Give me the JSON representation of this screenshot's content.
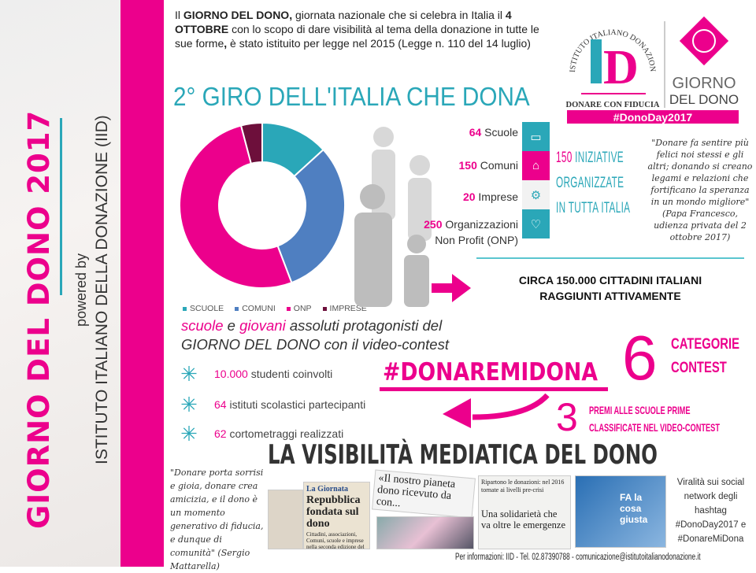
{
  "side": {
    "title": "GIORNO DEL DONO 2017",
    "powered": "powered by",
    "institute": "ISTITUTO ITALIANO DELLA DONAZIONE (IID)"
  },
  "intro": {
    "p1": "Il ",
    "b1": "GIORNO DEL DONO,",
    "p2": " giornata nazionale che si celebra in Italia il ",
    "b2": "4 OTTOBRE",
    "p3": " con lo scopo di dare visibilità al tema della donazione in tutte le sue forme",
    "b3": ",",
    "p4": " è stato istituito per legge nel 2015 (Legge n. 110 del 14 luglio)"
  },
  "giro_title": "2° GIRO DELL'ITALIA CHE DONA",
  "logo": {
    "arc": "ISTITUTO ITALIANO DONAZIONE",
    "mono": "ID",
    "tagline": "DONARE CON FIDUCIA",
    "giorno": "GIORNO",
    "deldono": "DEL DONO",
    "hashtag": "#DonoDay2017"
  },
  "chart_data": {
    "type": "pie",
    "donut": true,
    "categories": [
      "SCUOLE",
      "COMUNI",
      "ONP",
      "IMPRESE"
    ],
    "values": [
      64,
      150,
      250,
      20
    ],
    "colors": [
      "#2aa7b8",
      "#4f7fc1",
      "#ec008c",
      "#6d0f3b"
    ],
    "legend": "bottom"
  },
  "categories": [
    {
      "num": "64",
      "label": " Scuole",
      "icon": "book-icon",
      "color": "#2aa7b8"
    },
    {
      "num": "150",
      "label": " Comuni",
      "icon": "building-icon",
      "color": "#ec008c"
    },
    {
      "num": "20",
      "label": " Imprese",
      "icon": "gears-icon",
      "color": "#f2f2f2"
    },
    {
      "num": "250",
      "label": " Organizzazioni",
      "label2": "Non Profit (ONP)",
      "icon": "heart-icon",
      "color": "#2aa7b8"
    }
  ],
  "iniziative": {
    "num": "150",
    "l1": " INIZIATIVE",
    "l2": "ORGANIZZATE",
    "l3": "IN TUTTA ITALIA"
  },
  "quote1": "\"Donare fa sentire più felici noi stessi e gli altri; donando si creano legami e relazioni che fortificano la speranza in un mondo migliore\" (Papa Francesco, udienza privata del 2 ottobre 2017)",
  "circa": {
    "l1": "CIRCA 150.000 CITTADINI ITALIANI",
    "l2": "RAGGIUNTI ATTIVAMENTE"
  },
  "scuole_text": {
    "w1": "scuole",
    "w2": " e ",
    "w3": "giovani",
    "w4": " assoluti protagonisti del",
    "l2a": "GIORNO DEL DONO",
    "l2b": " con il video-contest"
  },
  "stats": [
    {
      "num": "10.000",
      "text": " studenti coinvolti"
    },
    {
      "num": "64",
      "text": " istituti scolastici partecipanti"
    },
    {
      "num": "62",
      "text": " cortometraggi realizzati"
    }
  ],
  "hashtag_contest": "#DONAREMIDONA",
  "six": {
    "num": "6",
    "l1": "CATEGORIE",
    "l2": "CONTEST"
  },
  "three": {
    "num": "3",
    "l1": "PREMI ALLE SCUOLE PRIME",
    "l2": "CLASSIFICATE NEL VIDEO-CONTEST"
  },
  "visibility_title": "LA VISIBILITÀ MEDIATICA DEL DONO",
  "quote2": "\"Donare porta sorrisi e gioia, donare crea amicizia, e il dono è un momento generativo di fiducia, e dunque di comunità\" (Sergio Mattarella)",
  "clips": {
    "c1a": "La Giornata",
    "c1b": "Repubblica fondata sul dono",
    "c1c": "Cittadini, associazioni, Comuni, scuole e imprese nella seconda edizione del Giro d'Italia che dona",
    "c2": "«Il nostro pianeta dono ricevuto da con...",
    "c3a": "Ripartono le donazioni: nel 2016 tornate ai livelli pre-crisi",
    "c3b": "Una solidarietà che va oltre le emergenze",
    "c4": "FA la cosa giusta"
  },
  "viral": "Viralità sui social network degli hashtag #DonoDay2017 e #DonareMiDona",
  "footer": "Per informazioni: IID - Tel. 02.87390788 - comunicazione@istitutoitalianodonazione.it",
  "colors": {
    "pink": "#ec008c",
    "teal": "#2aa7b8"
  }
}
